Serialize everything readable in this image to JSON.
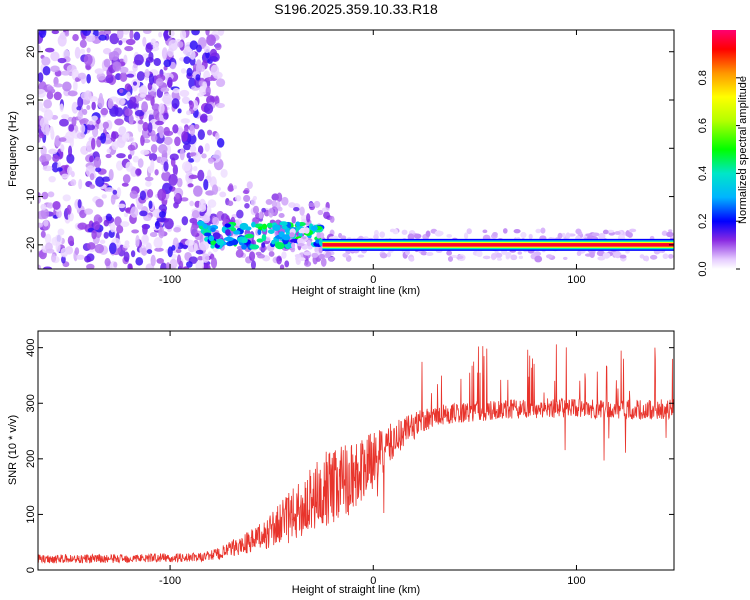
{
  "title": "S196.2025.359.10.33.R18",
  "chart_data": [
    {
      "type": "heatmap",
      "xlabel": "Height of straight line (km)",
      "ylabel": "Frequency (Hz)",
      "xlim": [
        -165,
        148
      ],
      "ylim": [
        -25,
        24.5
      ],
      "x_ticks": [
        -100,
        0,
        100
      ],
      "y_ticks": [
        -20,
        -10,
        0,
        10,
        20
      ],
      "colorbar": {
        "label": "Normalized spectral amplitude",
        "range": [
          0,
          1
        ],
        "ticks": [
          0.0,
          0.2,
          0.4,
          0.6,
          0.8
        ]
      },
      "features": {
        "broadband_noise_region_km": [
          -165,
          -75
        ],
        "tone_frequency_hz": -20,
        "tone_onset_km": -85,
        "tone_normalized_amplitude": 1.0
      }
    },
    {
      "type": "line",
      "xlabel": "Height of straight line (km)",
      "ylabel": "SNR (10 * v/v)",
      "xlim": [
        -165,
        148
      ],
      "ylim": [
        0,
        430
      ],
      "x_ticks": [
        -100,
        0,
        100
      ],
      "y_ticks": [
        0,
        100,
        200,
        300,
        400
      ],
      "series": [
        {
          "color": "#e8342c",
          "x": [
            -165,
            -150,
            -130,
            -110,
            -95,
            -85,
            -75,
            -65,
            -55,
            -45,
            -35,
            -25,
            -15,
            -5,
            5,
            15,
            25,
            35,
            50,
            70,
            90,
            110,
            130,
            148
          ],
          "y": [
            20,
            20,
            20,
            22,
            22,
            23,
            30,
            45,
            60,
            85,
            110,
            140,
            160,
            180,
            215,
            250,
            270,
            280,
            285,
            290,
            292,
            290,
            288,
            290
          ],
          "noise_amplitude": [
            8,
            8,
            8,
            8,
            8,
            8,
            12,
            18,
            25,
            40,
            55,
            70,
            70,
            60,
            40,
            30,
            20,
            18,
            18,
            18,
            18,
            18,
            18,
            18
          ]
        }
      ]
    }
  ]
}
